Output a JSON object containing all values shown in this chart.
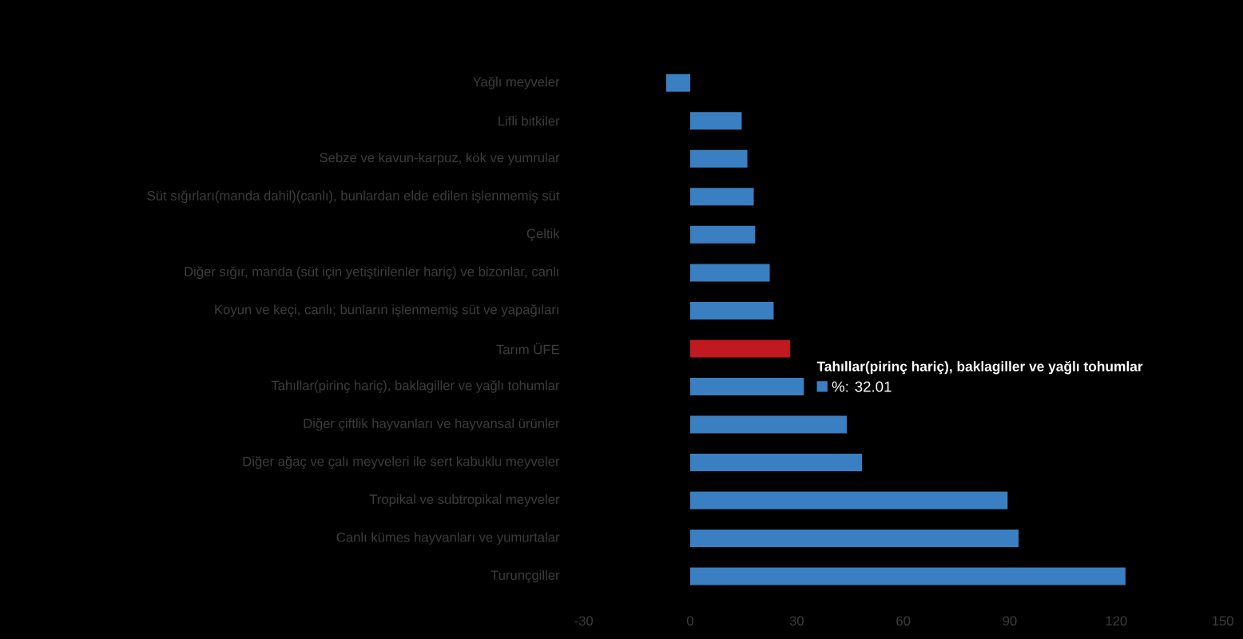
{
  "chart_data": {
    "type": "bar",
    "orientation": "horizontal",
    "categories": [
      "Yağlı meyveler",
      "Lifli bitkiler",
      "Sebze ve kavun-karpuz, kök ve yumrular",
      "Süt sığırları(manda dahil)(canlı), bunlardan elde edilen işlenmemiş süt",
      "Çeltik",
      "Diğer sığır, manda (süt için yetiştirilenler hariç) ve bizonlar, canlı",
      "Koyun ve keçi, canlı; bunların işlenmemiş süt ve yapağıları",
      "Tarım ÜFE",
      "Tahıllar(pirinç hariç), baklagiller ve yağlı tohumlar",
      "Diğer çiftlik hayvanları ve hayvansal ürünler",
      "Diğer ağaç ve çalı meyveleri ile sert kabuklu meyveler",
      "Tropikal ve subtropikal meyveler",
      "Canlı kümes hayvanları ve yumurtalar",
      "Turunçgiller"
    ],
    "values": [
      -6.8,
      14.5,
      16.1,
      17.9,
      18.3,
      22.4,
      23.5,
      28.1,
      32.01,
      44.1,
      48.4,
      89.4,
      92.5,
      122.6
    ],
    "colors": [
      "#3a7fc1",
      "#3a7fc1",
      "#3a7fc1",
      "#3a7fc1",
      "#3a7fc1",
      "#3a7fc1",
      "#3a7fc1",
      "#c0191f",
      "#3a7fc1",
      "#3a7fc1",
      "#3a7fc1",
      "#3a7fc1",
      "#3a7fc1",
      "#3a7fc1"
    ],
    "value_labels": [
      null,
      null,
      null,
      null,
      null,
      null,
      null,
      null,
      "%: 32.01",
      null,
      null,
      null,
      null,
      null
    ],
    "annotations": [
      "Tahıllar(pirinç hariç), baklagiller ve yağlı tohumlar"
    ],
    "xlim": [
      -30,
      150
    ],
    "xticks": [
      -30,
      0,
      30,
      60,
      90,
      120,
      150
    ]
  }
}
